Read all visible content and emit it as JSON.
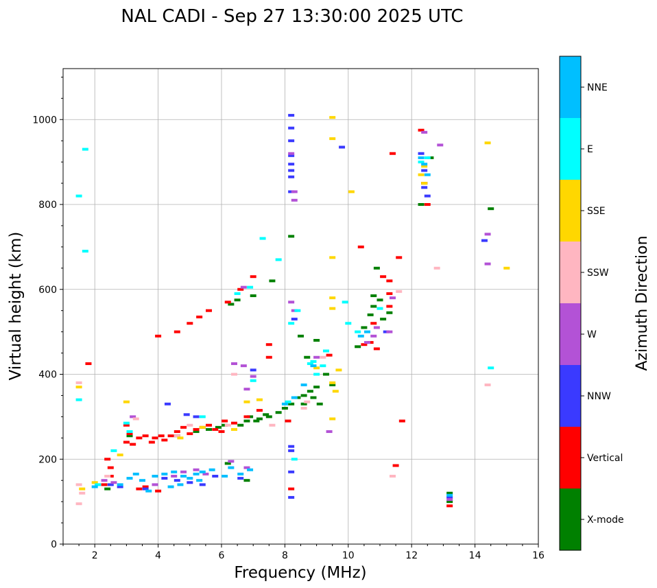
{
  "chart_data": {
    "type": "scatter",
    "title": "NAL CADI - Sep 27 13:30:00 2025 UTC",
    "xlabel": "Frequency (MHz)",
    "ylabel": "Virtual height (km)",
    "xlim": [
      1,
      16
    ],
    "ylim": [
      0,
      1120
    ],
    "xticks": [
      2,
      4,
      6,
      8,
      10,
      12,
      14,
      16
    ],
    "yticks": [
      0,
      200,
      400,
      600,
      800,
      1000
    ],
    "grid": true,
    "colorbar": {
      "label": "Azimuth Direction",
      "categories": [
        "X-mode",
        "Vertical",
        "NNW",
        "W",
        "SSW",
        "SSE",
        "E",
        "NNE"
      ],
      "colors": [
        "#008000",
        "#ff0000",
        "#3a3aff",
        "#b352d6",
        "#ffb6c1",
        "#ffd700",
        "#00ffff",
        "#00bfff"
      ]
    },
    "series": [
      {
        "name": "X-mode",
        "points": [
          [
            2.4,
            130
          ],
          [
            3.1,
            255
          ],
          [
            4.6,
            255
          ],
          [
            5.2,
            265
          ],
          [
            5.6,
            270
          ],
          [
            5.9,
            275
          ],
          [
            6.1,
            280
          ],
          [
            6.3,
            565
          ],
          [
            6.5,
            575
          ],
          [
            6.6,
            280
          ],
          [
            6.8,
            290
          ],
          [
            6.9,
            300
          ],
          [
            7.0,
            585
          ],
          [
            7.1,
            290
          ],
          [
            7.2,
            295
          ],
          [
            7.4,
            305
          ],
          [
            7.5,
            300
          ],
          [
            7.6,
            620
          ],
          [
            7.8,
            310
          ],
          [
            8.0,
            320
          ],
          [
            8.2,
            330
          ],
          [
            8.2,
            725
          ],
          [
            8.4,
            345
          ],
          [
            8.5,
            490
          ],
          [
            8.6,
            350
          ],
          [
            8.6,
            330
          ],
          [
            8.7,
            440
          ],
          [
            8.8,
            360
          ],
          [
            8.9,
            345
          ],
          [
            9.0,
            370
          ],
          [
            9.0,
            480
          ],
          [
            9.1,
            330
          ],
          [
            9.3,
            400
          ],
          [
            9.5,
            375
          ],
          [
            10.3,
            465
          ],
          [
            10.5,
            510
          ],
          [
            10.7,
            540
          ],
          [
            10.8,
            560
          ],
          [
            10.8,
            585
          ],
          [
            10.9,
            650
          ],
          [
            11.0,
            575
          ],
          [
            11.1,
            530
          ],
          [
            11.3,
            545
          ],
          [
            12.3,
            800
          ],
          [
            12.4,
            850
          ],
          [
            12.6,
            910
          ],
          [
            13.2,
            120
          ],
          [
            13.2,
            100
          ],
          [
            14.5,
            790
          ],
          [
            6.8,
            150
          ],
          [
            6.2,
            190
          ]
        ]
      },
      {
        "name": "Vertical",
        "points": [
          [
            1.8,
            425
          ],
          [
            2.3,
            140
          ],
          [
            2.4,
            200
          ],
          [
            2.5,
            180
          ],
          [
            2.5,
            160
          ],
          [
            3.0,
            240
          ],
          [
            3.1,
            260
          ],
          [
            3.0,
            280
          ],
          [
            3.2,
            235
          ],
          [
            3.4,
            250
          ],
          [
            3.6,
            255
          ],
          [
            3.8,
            240
          ],
          [
            3.9,
            250
          ],
          [
            4.1,
            255
          ],
          [
            4.2,
            245
          ],
          [
            4.4,
            255
          ],
          [
            4.6,
            265
          ],
          [
            4.8,
            275
          ],
          [
            5.0,
            260
          ],
          [
            5.2,
            270
          ],
          [
            5.4,
            275
          ],
          [
            5.6,
            280
          ],
          [
            5.8,
            270
          ],
          [
            6.0,
            265
          ],
          [
            4.0,
            490
          ],
          [
            4.6,
            500
          ],
          [
            5.0,
            520
          ],
          [
            5.3,
            535
          ],
          [
            5.6,
            550
          ],
          [
            6.2,
            570
          ],
          [
            6.6,
            600
          ],
          [
            7.0,
            630
          ],
          [
            6.1,
            290
          ],
          [
            6.4,
            285
          ],
          [
            6.8,
            300
          ],
          [
            7.2,
            315
          ],
          [
            7.5,
            470
          ],
          [
            7.5,
            440
          ],
          [
            8.1,
            290
          ],
          [
            8.2,
            130
          ],
          [
            9.4,
            445
          ],
          [
            10.4,
            700
          ],
          [
            10.5,
            470
          ],
          [
            10.7,
            475
          ],
          [
            10.8,
            520
          ],
          [
            10.9,
            460
          ],
          [
            11.1,
            630
          ],
          [
            11.3,
            590
          ],
          [
            11.3,
            560
          ],
          [
            11.3,
            620
          ],
          [
            11.4,
            920
          ],
          [
            11.5,
            185
          ],
          [
            11.6,
            675
          ],
          [
            11.7,
            290
          ],
          [
            12.3,
            975
          ],
          [
            12.4,
            850
          ],
          [
            12.5,
            800
          ],
          [
            13.2,
            90
          ],
          [
            3.4,
            130
          ],
          [
            4.0,
            125
          ],
          [
            3.6,
            135
          ]
        ]
      },
      {
        "name": "NNW",
        "points": [
          [
            2.5,
            140
          ],
          [
            2.8,
            135
          ],
          [
            3.6,
            130
          ],
          [
            4.2,
            155
          ],
          [
            4.6,
            150
          ],
          [
            5.0,
            145
          ],
          [
            5.4,
            140
          ],
          [
            5.8,
            160
          ],
          [
            4.3,
            330
          ],
          [
            4.9,
            305
          ],
          [
            5.2,
            300
          ],
          [
            6.6,
            155
          ],
          [
            7.0,
            410
          ],
          [
            8.2,
            1010
          ],
          [
            8.2,
            980
          ],
          [
            8.2,
            950
          ],
          [
            8.2,
            915
          ],
          [
            8.2,
            895
          ],
          [
            8.2,
            880
          ],
          [
            8.2,
            865
          ],
          [
            8.2,
            830
          ],
          [
            8.2,
            230
          ],
          [
            8.2,
            220
          ],
          [
            8.2,
            170
          ],
          [
            8.2,
            110
          ],
          [
            8.3,
            530
          ],
          [
            9.8,
            935
          ],
          [
            11.2,
            500
          ],
          [
            12.3,
            920
          ],
          [
            12.4,
            880
          ],
          [
            12.4,
            840
          ],
          [
            12.5,
            820
          ],
          [
            14.3,
            715
          ],
          [
            13.2,
            110
          ]
        ]
      },
      {
        "name": "W",
        "points": [
          [
            2.3,
            150
          ],
          [
            2.6,
            145
          ],
          [
            3.2,
            300
          ],
          [
            3.9,
            140
          ],
          [
            4.5,
            160
          ],
          [
            4.8,
            170
          ],
          [
            5.2,
            175
          ],
          [
            5.5,
            165
          ],
          [
            6.3,
            195
          ],
          [
            6.4,
            425
          ],
          [
            6.7,
            605
          ],
          [
            6.7,
            420
          ],
          [
            6.8,
            365
          ],
          [
            6.8,
            180
          ],
          [
            7.0,
            395
          ],
          [
            8.2,
            920
          ],
          [
            8.2,
            570
          ],
          [
            8.3,
            550
          ],
          [
            8.3,
            830
          ],
          [
            8.3,
            810
          ],
          [
            9.0,
            440
          ],
          [
            9.4,
            265
          ],
          [
            10.6,
            475
          ],
          [
            10.8,
            490
          ],
          [
            10.9,
            510
          ],
          [
            11.3,
            500
          ],
          [
            11.4,
            580
          ],
          [
            12.4,
            970
          ],
          [
            12.9,
            940
          ],
          [
            14.4,
            730
          ],
          [
            14.4,
            660
          ],
          [
            13.2,
            105
          ]
        ]
      },
      {
        "name": "SSW",
        "points": [
          [
            1.5,
            95
          ],
          [
            1.5,
            140
          ],
          [
            1.5,
            380
          ],
          [
            1.6,
            120
          ],
          [
            2.4,
            160
          ],
          [
            3.3,
            295
          ],
          [
            4.6,
            255
          ],
          [
            5.0,
            280
          ],
          [
            6.2,
            280
          ],
          [
            6.4,
            400
          ],
          [
            7.6,
            280
          ],
          [
            8.6,
            320
          ],
          [
            8.7,
            335
          ],
          [
            9.2,
            440
          ],
          [
            11.4,
            160
          ],
          [
            12.8,
            650
          ],
          [
            14.4,
            375
          ],
          [
            11.6,
            595
          ]
        ]
      },
      {
        "name": "SSE",
        "points": [
          [
            1.6,
            130
          ],
          [
            1.5,
            370
          ],
          [
            2.0,
            145
          ],
          [
            2.8,
            210
          ],
          [
            3.0,
            335
          ],
          [
            4.7,
            250
          ],
          [
            5.4,
            275
          ],
          [
            6.4,
            270
          ],
          [
            6.8,
            335
          ],
          [
            7.2,
            340
          ],
          [
            9.0,
            415
          ],
          [
            9.5,
            1005
          ],
          [
            9.5,
            955
          ],
          [
            9.5,
            675
          ],
          [
            9.5,
            580
          ],
          [
            9.5,
            555
          ],
          [
            9.5,
            295
          ],
          [
            9.5,
            380
          ],
          [
            9.6,
            360
          ],
          [
            9.7,
            410
          ],
          [
            10.1,
            830
          ],
          [
            12.3,
            870
          ],
          [
            12.4,
            890
          ],
          [
            12.4,
            850
          ],
          [
            14.4,
            945
          ],
          [
            15.0,
            650
          ]
        ]
      },
      {
        "name": "E",
        "points": [
          [
            1.5,
            820
          ],
          [
            1.5,
            340
          ],
          [
            1.7,
            930
          ],
          [
            1.7,
            690
          ],
          [
            2.1,
            140
          ],
          [
            2.6,
            220
          ],
          [
            3.0,
            285
          ],
          [
            3.1,
            265
          ],
          [
            5.4,
            300
          ],
          [
            6.5,
            590
          ],
          [
            6.9,
            605
          ],
          [
            7.0,
            385
          ],
          [
            7.3,
            720
          ],
          [
            7.8,
            670
          ],
          [
            8.1,
            335
          ],
          [
            8.2,
            520
          ],
          [
            8.3,
            200
          ],
          [
            8.4,
            550
          ],
          [
            8.8,
            425
          ],
          [
            9.0,
            400
          ],
          [
            9.2,
            420
          ],
          [
            9.3,
            455
          ],
          [
            9.9,
            570
          ],
          [
            10.0,
            520
          ],
          [
            10.3,
            500
          ],
          [
            11.0,
            555
          ],
          [
            12.3,
            900
          ],
          [
            12.5,
            910
          ],
          [
            14.5,
            415
          ],
          [
            8.9,
            430
          ]
        ]
      },
      {
        "name": "NNE",
        "points": [
          [
            2.0,
            135
          ],
          [
            2.8,
            140
          ],
          [
            3.1,
            155
          ],
          [
            3.3,
            165
          ],
          [
            3.5,
            150
          ],
          [
            3.7,
            125
          ],
          [
            3.9,
            160
          ],
          [
            4.2,
            165
          ],
          [
            4.5,
            170
          ],
          [
            4.8,
            160
          ],
          [
            5.0,
            155
          ],
          [
            5.2,
            165
          ],
          [
            5.4,
            170
          ],
          [
            5.7,
            175
          ],
          [
            6.1,
            160
          ],
          [
            6.6,
            165
          ],
          [
            6.9,
            175
          ],
          [
            4.4,
            135
          ],
          [
            4.7,
            140
          ],
          [
            5.3,
            150
          ],
          [
            6.3,
            180
          ],
          [
            8.0,
            330
          ],
          [
            8.3,
            345
          ],
          [
            8.6,
            375
          ],
          [
            8.9,
            420
          ],
          [
            10.6,
            500
          ],
          [
            12.3,
            910
          ],
          [
            12.4,
            895
          ],
          [
            12.5,
            870
          ],
          [
            13.2,
            115
          ],
          [
            10.4,
            490
          ]
        ]
      }
    ]
  }
}
